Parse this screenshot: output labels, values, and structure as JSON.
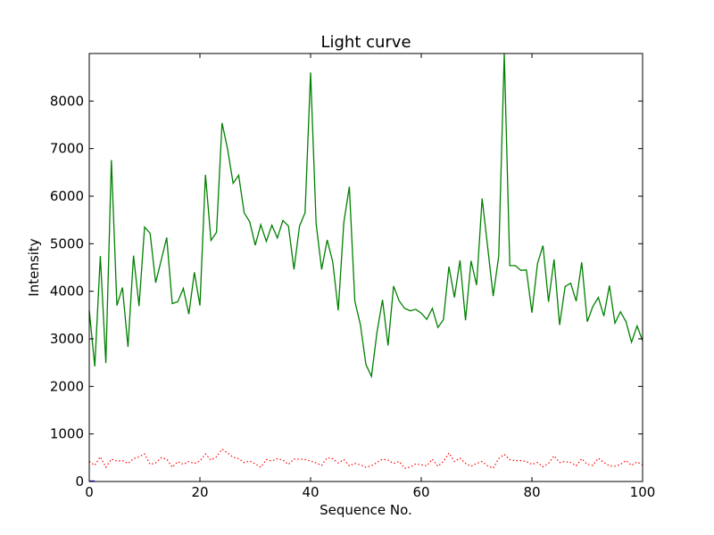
{
  "chart_data": {
    "type": "line",
    "title": "Light curve",
    "xlabel": "Sequence No.",
    "ylabel": "Intensity",
    "xlim": [
      0,
      100
    ],
    "ylim": [
      0,
      9000
    ],
    "xticks": [
      0,
      20,
      40,
      60,
      80,
      100
    ],
    "yticks": [
      0,
      1000,
      2000,
      3000,
      4000,
      5000,
      6000,
      7000,
      8000
    ],
    "grid": false,
    "series": [
      {
        "color": "#008000",
        "style": "solid",
        "x": [
          0,
          1,
          2,
          3,
          4,
          5,
          6,
          7,
          8,
          9,
          10,
          11,
          12,
          13,
          14,
          15,
          16,
          17,
          18,
          19,
          20,
          21,
          22,
          23,
          24,
          25,
          26,
          27,
          28,
          29,
          30,
          31,
          32,
          33,
          34,
          35,
          36,
          37,
          38,
          39,
          40,
          41,
          42,
          43,
          44,
          45,
          46,
          47,
          48,
          49,
          50,
          51,
          52,
          53,
          54,
          55,
          56,
          57,
          58,
          59,
          60,
          61,
          62,
          63,
          64,
          65,
          66,
          67,
          68,
          69,
          70,
          71,
          72,
          73,
          74,
          75,
          76,
          77,
          78,
          79,
          80,
          81,
          82,
          83,
          84,
          85,
          86,
          87,
          88,
          89,
          90,
          91,
          92,
          93,
          94,
          95,
          96,
          97,
          98,
          99,
          100
        ],
        "values": [
          3600,
          2420,
          4740,
          2490,
          6760,
          3700,
          4080,
          2830,
          4750,
          3690,
          5350,
          5220,
          4180,
          4650,
          5130,
          3740,
          3780,
          4060,
          3520,
          4400,
          3700,
          6450,
          5070,
          5240,
          7540,
          6990,
          6270,
          6440,
          5650,
          5460,
          4970,
          5400,
          5050,
          5390,
          5120,
          5490,
          5370,
          4460,
          5370,
          5650,
          8600,
          5420,
          4460,
          5080,
          4620,
          3600,
          5440,
          6200,
          3790,
          3300,
          2460,
          2210,
          3140,
          3820,
          2860,
          4110,
          3800,
          3640,
          3590,
          3620,
          3540,
          3410,
          3640,
          3240,
          3400,
          4520,
          3870,
          4650,
          3390,
          4640,
          4130,
          5950,
          4930,
          3900,
          4740,
          9000,
          4540,
          4540,
          4440,
          4450,
          3550,
          4580,
          4960,
          3780,
          4670,
          3290,
          4100,
          4170,
          3790,
          4610,
          3360,
          3680,
          3870,
          3480,
          4120,
          3330,
          3570,
          3360,
          2930,
          3270,
          2960
        ]
      },
      {
        "color": "#ff0000",
        "style": "dotted",
        "x": [
          0,
          1,
          2,
          3,
          4,
          5,
          6,
          7,
          8,
          9,
          10,
          11,
          12,
          13,
          14,
          15,
          16,
          17,
          18,
          19,
          20,
          21,
          22,
          23,
          24,
          25,
          26,
          27,
          28,
          29,
          30,
          31,
          32,
          33,
          34,
          35,
          36,
          37,
          38,
          39,
          40,
          41,
          42,
          43,
          44,
          45,
          46,
          47,
          48,
          49,
          50,
          51,
          52,
          53,
          54,
          55,
          56,
          57,
          58,
          59,
          60,
          61,
          62,
          63,
          64,
          65,
          66,
          67,
          68,
          69,
          70,
          71,
          72,
          73,
          74,
          75,
          76,
          77,
          78,
          79,
          80,
          81,
          82,
          83,
          84,
          85,
          86,
          87,
          88,
          89,
          90,
          91,
          92,
          93,
          94,
          95,
          96,
          97,
          98,
          99,
          100
        ],
        "values": [
          420,
          340,
          520,
          300,
          470,
          430,
          440,
          380,
          480,
          520,
          580,
          360,
          390,
          500,
          470,
          300,
          420,
          360,
          420,
          380,
          430,
          580,
          450,
          520,
          680,
          600,
          510,
          480,
          400,
          430,
          370,
          300,
          460,
          430,
          480,
          450,
          360,
          470,
          470,
          460,
          430,
          390,
          340,
          500,
          480,
          390,
          460,
          330,
          380,
          350,
          300,
          330,
          400,
          470,
          450,
          380,
          420,
          280,
          300,
          370,
          350,
          330,
          470,
          320,
          420,
          600,
          420,
          490,
          380,
          320,
          380,
          420,
          330,
          280,
          480,
          570,
          460,
          440,
          440,
          420,
          360,
          400,
          310,
          380,
          540,
          400,
          420,
          400,
          330,
          480,
          360,
          340,
          490,
          400,
          330,
          320,
          360,
          440,
          340,
          410,
          350
        ]
      },
      {
        "color": "#0000ff",
        "style": "solid",
        "x": [
          0,
          1
        ],
        "values": [
          10,
          10
        ]
      }
    ]
  }
}
